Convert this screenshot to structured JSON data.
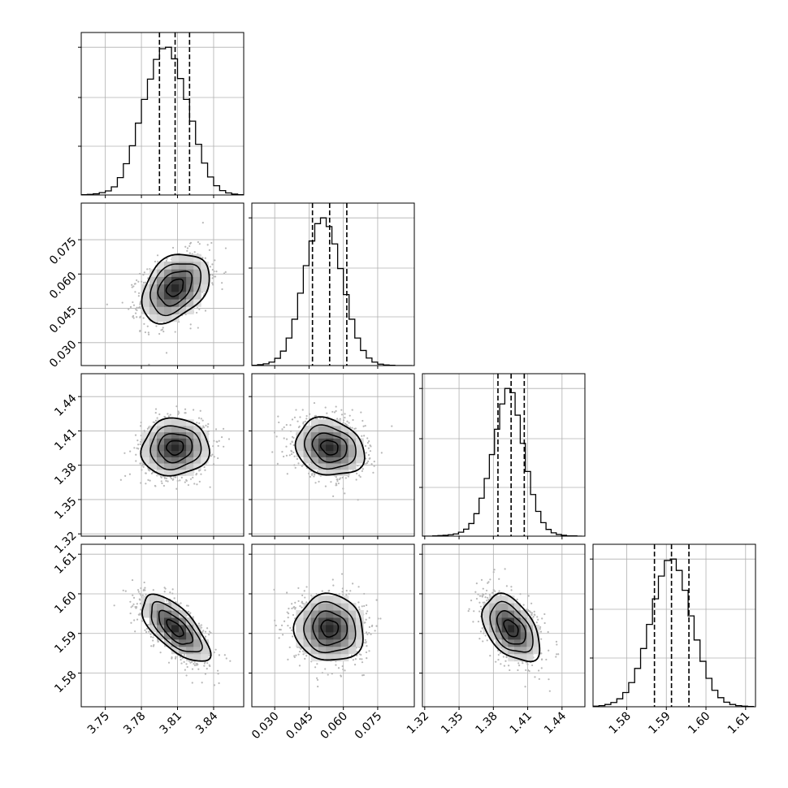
{
  "chart_data": {
    "type": "corner",
    "description": "Corner plot of posterior samples for four parameters: 1-D marginal histograms on the diagonal with dashed quantile lines, 2-D density contours with sample scatter below the diagonal.",
    "grid": true,
    "parameters": [
      {
        "range": [
          3.73,
          3.865
        ],
        "ticks": [
          3.75,
          3.78,
          3.81,
          3.84
        ],
        "tick_labels": [
          "3.75",
          "3.78",
          "3.81",
          "3.84"
        ],
        "mean": 3.808,
        "sd": 0.014,
        "quantiles": [
          3.795,
          3.808,
          3.82
        ],
        "hist": {
          "edges": [
            3.73,
            3.735,
            3.74,
            3.745,
            3.75,
            3.755,
            3.76,
            3.765,
            3.77,
            3.775,
            3.78,
            3.785,
            3.79,
            3.795,
            3.8,
            3.805,
            3.81,
            3.815,
            3.82,
            3.825,
            3.83,
            3.835,
            3.84,
            3.845,
            3.85,
            3.855,
            3.86,
            3.865
          ],
          "counts": [
            1,
            2,
            4,
            8,
            14,
            28,
            60,
            108,
            170,
            248,
            330,
            400,
            468,
            505,
            510,
            470,
            402,
            330,
            255,
            175,
            110,
            62,
            32,
            15,
            7,
            3,
            1
          ]
        }
      },
      {
        "range": [
          0.02,
          0.091
        ],
        "ticks": [
          0.03,
          0.045,
          0.06,
          0.075
        ],
        "tick_labels": [
          "0.030",
          "0.045",
          "0.060",
          "0.075"
        ],
        "mean": 0.054,
        "sd": 0.0075,
        "quantiles": [
          0.0465,
          0.054,
          0.0615
        ],
        "hist": {
          "edges": [
            0.02,
            0.0225,
            0.025,
            0.0275,
            0.03,
            0.0325,
            0.035,
            0.0375,
            0.04,
            0.0425,
            0.045,
            0.0475,
            0.05,
            0.0525,
            0.055,
            0.0575,
            0.06,
            0.0625,
            0.065,
            0.0675,
            0.07,
            0.0725,
            0.075,
            0.0775,
            0.08,
            0.0825,
            0.085,
            0.0875,
            0.09
          ],
          "counts": [
            1,
            3,
            6,
            12,
            25,
            50,
            95,
            160,
            250,
            345,
            430,
            490,
            510,
            480,
            420,
            335,
            245,
            160,
            95,
            52,
            26,
            12,
            5,
            2,
            1,
            0,
            0,
            0
          ]
        }
      },
      {
        "range": [
          1.318,
          1.46
        ],
        "ticks": [
          1.32,
          1.35,
          1.38,
          1.41,
          1.44
        ],
        "tick_labels": [
          "1.32",
          "1.35",
          "1.38",
          "1.41",
          "1.44"
        ],
        "mean": 1.3955,
        "sd": 0.0125,
        "quantiles": [
          1.384,
          1.3955,
          1.407
        ],
        "hist": {
          "edges": [
            1.318,
            1.3225,
            1.327,
            1.3315,
            1.336,
            1.3405,
            1.345,
            1.3495,
            1.354,
            1.3585,
            1.363,
            1.3675,
            1.372,
            1.3765,
            1.381,
            1.3855,
            1.39,
            1.3945,
            1.399,
            1.4035,
            1.408,
            1.4125,
            1.417,
            1.4215,
            1.426,
            1.4305,
            1.435,
            1.4395,
            1.444,
            1.4485,
            1.453,
            1.4575
          ],
          "counts": [
            0,
            0,
            1,
            2,
            3,
            5,
            8,
            14,
            25,
            45,
            80,
            135,
            205,
            290,
            380,
            470,
            525,
            510,
            430,
            330,
            230,
            148,
            88,
            48,
            24,
            12,
            6,
            3,
            1,
            1,
            0
          ]
        }
      },
      {
        "range": [
          1.5715,
          1.6125
        ],
        "ticks": [
          1.58,
          1.59,
          1.6,
          1.61
        ],
        "tick_labels": [
          "1.58",
          "1.59",
          "1.60",
          "1.61"
        ],
        "mean": 1.5913,
        "sd": 0.0042,
        "quantiles": [
          1.587,
          1.5913,
          1.5957
        ],
        "hist": {
          "edges": [
            1.5715,
            1.573,
            1.5745,
            1.576,
            1.5775,
            1.579,
            1.5805,
            1.582,
            1.5835,
            1.585,
            1.5865,
            1.588,
            1.5895,
            1.591,
            1.5925,
            1.594,
            1.5955,
            1.597,
            1.5985,
            1.6,
            1.6015,
            1.603,
            1.6045,
            1.606,
            1.6075,
            1.609,
            1.6105,
            1.612
          ],
          "counts": [
            2,
            4,
            8,
            15,
            28,
            50,
            85,
            135,
            205,
            290,
            380,
            460,
            515,
            520,
            480,
            410,
            320,
            235,
            160,
            100,
            58,
            32,
            16,
            8,
            4,
            2,
            1
          ]
        }
      }
    ],
    "correlations": {
      "1-0": 0.35,
      "2-0": 0.05,
      "2-1": -0.18,
      "3-0": -0.68,
      "3-1": -0.05,
      "3-2": -0.45
    },
    "contour_levels_sigma": [
      0.5,
      1.0,
      1.5,
      2.0
    ]
  }
}
